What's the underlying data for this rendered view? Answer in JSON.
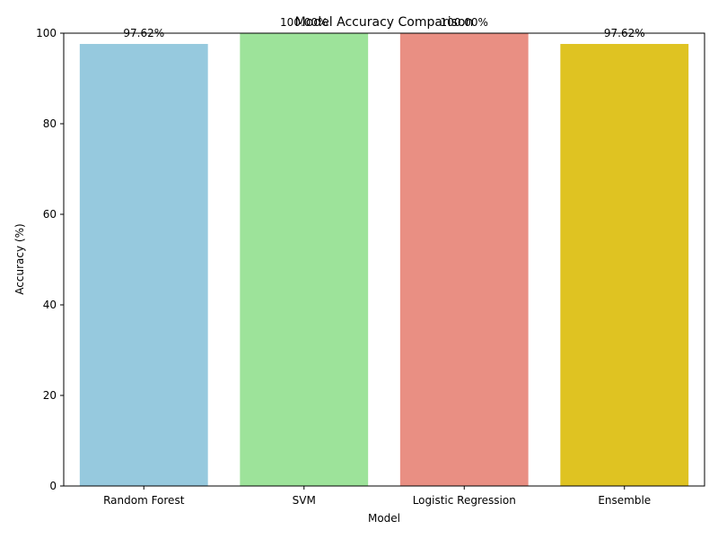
{
  "chart_data": {
    "type": "bar",
    "title": "Model Accuracy Comparison",
    "xlabel": "Model",
    "ylabel": "Accuracy (%)",
    "ylim": [
      0,
      100
    ],
    "yticks": [
      0,
      20,
      40,
      60,
      80,
      100
    ],
    "categories": [
      "Random Forest",
      "SVM",
      "Logistic Regression",
      "Ensemble"
    ],
    "values": [
      97.62,
      100.0,
      100.0,
      97.62
    ],
    "data_labels": [
      "97.62%",
      "100.00%",
      "100.00%",
      "97.62%"
    ],
    "colors": [
      "#96c9de",
      "#9de39a",
      "#e98f83",
      "#dfc322"
    ],
    "grid": false,
    "legend": "none"
  }
}
